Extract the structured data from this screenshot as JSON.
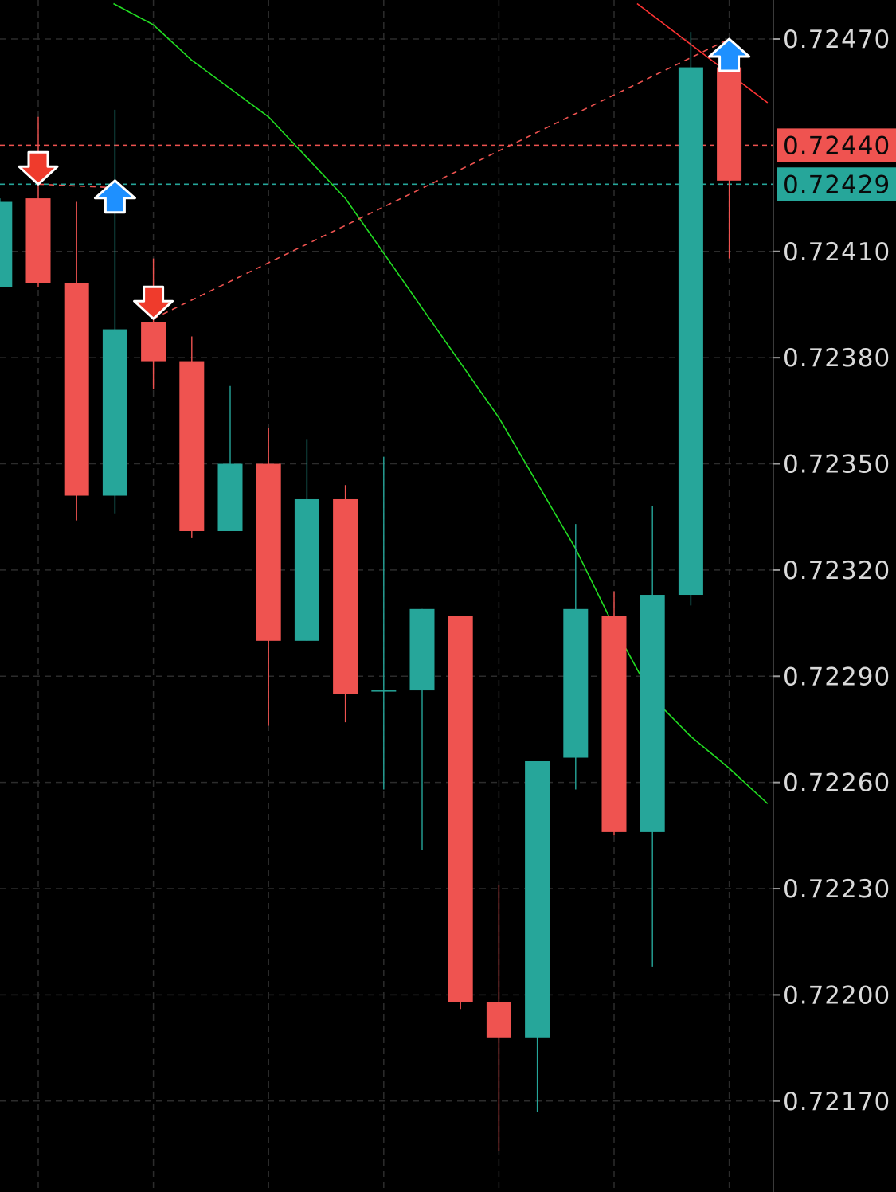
{
  "chart_data": {
    "type": "candlestick",
    "title": "",
    "xlabel": "",
    "ylabel": "",
    "ylim": [
      0.72145,
      0.7248
    ],
    "y_ticks": [
      "0.72470",
      "0.72410",
      "0.72380",
      "0.72350",
      "0.72320",
      "0.72290",
      "0.72260",
      "0.72230",
      "0.72200",
      "0.72170"
    ],
    "y_tick_values": [
      0.7247,
      0.7241,
      0.7238,
      0.7235,
      0.7232,
      0.7229,
      0.7226,
      0.7223,
      0.722,
      0.7217
    ],
    "grid": true,
    "colors": {
      "up": "#26a69a",
      "down": "#ef5350",
      "background": "#000000",
      "ma": "#22dd22",
      "trend": "#ff3333",
      "buy_arrow": "#1e90ff",
      "sell_arrow": "#ef3b2c"
    },
    "price_lines": [
      {
        "label": "0.72440",
        "value": 0.7244,
        "color": "#ef5350"
      },
      {
        "label": "0.72429",
        "value": 0.72429,
        "color": "#26a69a"
      }
    ],
    "candles": [
      {
        "i": -1,
        "open": 0.724,
        "high": 0.72425,
        "low": 0.724,
        "close": 0.72424
      },
      {
        "i": 0,
        "open": 0.72425,
        "high": 0.72448,
        "low": 0.724,
        "close": 0.72401
      },
      {
        "i": 1,
        "open": 0.72401,
        "high": 0.72424,
        "low": 0.72334,
        "close": 0.72341
      },
      {
        "i": 2,
        "open": 0.72341,
        "high": 0.7245,
        "low": 0.72336,
        "close": 0.72388
      },
      {
        "i": 3,
        "open": 0.7239,
        "high": 0.72408,
        "low": 0.72371,
        "close": 0.72379
      },
      {
        "i": 4,
        "open": 0.72379,
        "high": 0.72386,
        "low": 0.72329,
        "close": 0.72331
      },
      {
        "i": 5,
        "open": 0.72331,
        "high": 0.72372,
        "low": 0.72331,
        "close": 0.7235
      },
      {
        "i": 6,
        "open": 0.7235,
        "high": 0.7236,
        "low": 0.72276,
        "close": 0.723
      },
      {
        "i": 7,
        "open": 0.723,
        "high": 0.72357,
        "low": 0.723,
        "close": 0.7234
      },
      {
        "i": 8,
        "open": 0.7234,
        "high": 0.72344,
        "low": 0.72277,
        "close": 0.72285
      },
      {
        "i": 9,
        "open": 0.72286,
        "high": 0.72352,
        "low": 0.72258,
        "close": 0.72286
      },
      {
        "i": 10,
        "open": 0.72286,
        "high": 0.72309,
        "low": 0.72241,
        "close": 0.72309
      },
      {
        "i": 11,
        "open": 0.72307,
        "high": 0.72307,
        "low": 0.72196,
        "close": 0.72198
      },
      {
        "i": 12,
        "open": 0.72198,
        "high": 0.72231,
        "low": 0.72156,
        "close": 0.72188
      },
      {
        "i": 13,
        "open": 0.72188,
        "high": 0.72266,
        "low": 0.72167,
        "close": 0.72266
      },
      {
        "i": 14,
        "open": 0.72267,
        "high": 0.72333,
        "low": 0.72258,
        "close": 0.72309
      },
      {
        "i": 15,
        "open": 0.72307,
        "high": 0.72314,
        "low": 0.72245,
        "close": 0.72246
      },
      {
        "i": 16,
        "open": 0.72246,
        "high": 0.72338,
        "low": 0.72208,
        "close": 0.72313
      },
      {
        "i": 17,
        "open": 0.72313,
        "high": 0.72472,
        "low": 0.7231,
        "close": 0.72462
      },
      {
        "i": 18,
        "open": 0.72462,
        "high": 0.72462,
        "low": 0.72408,
        "close": 0.7243
      }
    ],
    "ma_line": [
      {
        "i": 1.96,
        "value": 0.7248
      },
      {
        "i": 3,
        "value": 0.72474
      },
      {
        "i": 4,
        "value": 0.72464
      },
      {
        "i": 6,
        "value": 0.72448
      },
      {
        "i": 8,
        "value": 0.72425
      },
      {
        "i": 10,
        "value": 0.72394
      },
      {
        "i": 12,
        "value": 0.72363
      },
      {
        "i": 14,
        "value": 0.72326
      },
      {
        "i": 15,
        "value": 0.72304
      },
      {
        "i": 16,
        "value": 0.72284
      },
      {
        "i": 17,
        "value": 0.72273
      },
      {
        "i": 18,
        "value": 0.72264
      },
      {
        "i": 19,
        "value": 0.72254
      }
    ],
    "trend_lines": [
      {
        "style": "solid",
        "points": [
          {
            "i": 15.6,
            "value": 0.7248
          },
          {
            "i": 19,
            "value": 0.72452
          }
        ]
      },
      {
        "style": "dashed",
        "points": [
          {
            "i": 3,
            "value": 0.72391
          },
          {
            "i": 18,
            "value": 0.7247
          }
        ]
      },
      {
        "style": "dashed",
        "points": [
          {
            "i": 0,
            "value": 0.72429
          },
          {
            "i": 2,
            "value": 0.72428
          }
        ]
      }
    ],
    "signals": [
      {
        "i": 0,
        "type": "sell",
        "value": 0.72429
      },
      {
        "i": 2,
        "type": "buy",
        "value": 0.7243
      },
      {
        "i": 3,
        "type": "sell",
        "value": 0.72391
      },
      {
        "i": 18,
        "type": "buy",
        "value": 0.7247
      }
    ]
  }
}
